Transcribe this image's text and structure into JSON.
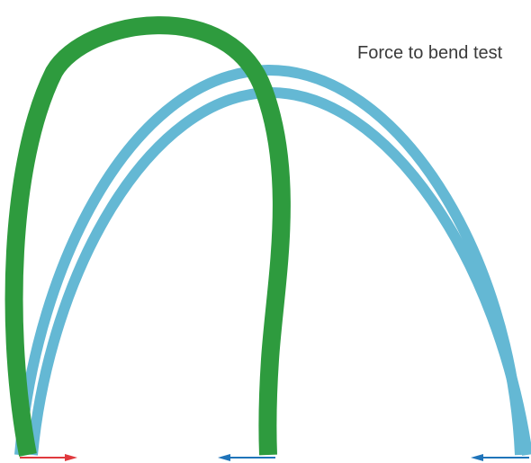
{
  "title": "Force to bend test",
  "colors": {
    "green_tube": "#2e9b3e",
    "blue_tube": "#64b8d4",
    "force_arrow_red": "#e0393e",
    "force_arrow_blue": "#1f74ba",
    "title_text": "#3a3a3a",
    "background": "#ffffff"
  },
  "elements": {
    "green_loop": "green bent tube",
    "blue_loop": "light blue bent tube",
    "arrows": [
      "red arrow pointing right",
      "blue arrow pointing left",
      "blue arrow pointing left"
    ]
  }
}
